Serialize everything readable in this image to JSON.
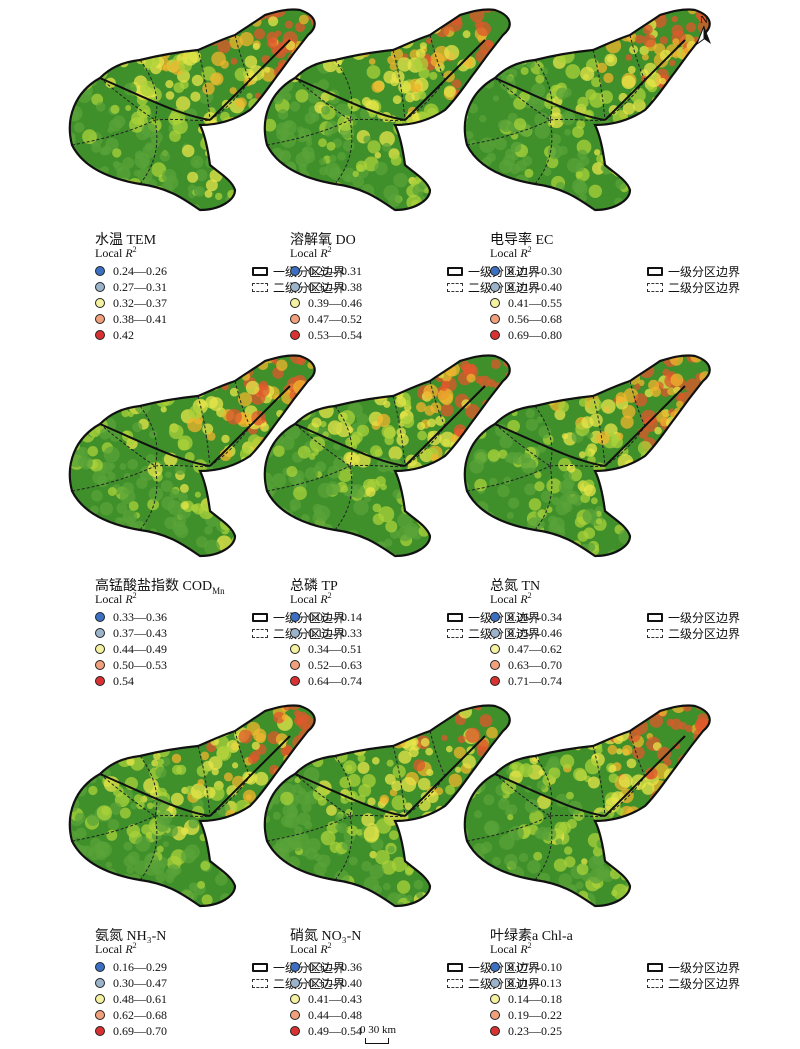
{
  "north_label": "N",
  "scale": {
    "label": "0  30 km"
  },
  "local_label_prefix": "Local ",
  "local_label_var": "R",
  "local_label_exp": "2",
  "boundary_labels": [
    "一级分区边界",
    "二级分区边界"
  ],
  "class_colors": [
    "#3a6fc1",
    "#9cb3cc",
    "#f4f2a0",
    "#f2a07b",
    "#d93131"
  ],
  "panels": [
    {
      "title": "水温 TEM",
      "title_sub": "",
      "classes": [
        "0.24—0.26",
        "0.27—0.31",
        "0.32—0.37",
        "0.38—0.41",
        "0.42"
      ]
    },
    {
      "title": "溶解氧 DO",
      "title_sub": "",
      "classes": [
        "0.25—0.31",
        "0.32—0.38",
        "0.39—0.46",
        "0.47—0.52",
        "0.53—0.54"
      ]
    },
    {
      "title": "电导率 EC",
      "title_sub": "",
      "classes": [
        "0.21—0.30",
        "0.31—0.40",
        "0.41—0.55",
        "0.56—0.68",
        "0.69—0.80"
      ]
    },
    {
      "title": "高锰酸盐指数 COD",
      "title_sub": "Mn",
      "classes": [
        "0.33—0.36",
        "0.37—0.43",
        "0.44—0.49",
        "0.50—0.53",
        "0.54"
      ]
    },
    {
      "title": "总磷 TP",
      "title_sub": "",
      "classes": [
        "0.05—0.14",
        "0.15—0.33",
        "0.34—0.51",
        "0.52—0.63",
        "0.64—0.74"
      ]
    },
    {
      "title": "总氮 TN",
      "title_sub": "",
      "classes": [
        "0.26—0.34",
        "0.35—0.46",
        "0.47—0.62",
        "0.63—0.70",
        "0.71—0.74"
      ]
    },
    {
      "title": "氨氮 NH₃-N",
      "title_sub": "",
      "classes": [
        "0.16—0.29",
        "0.30—0.47",
        "0.48—0.61",
        "0.62—0.68",
        "0.69—0.70"
      ]
    },
    {
      "title": "硝氮 NO₃-N",
      "title_sub": "",
      "classes": [
        "0.32—0.36",
        "0.37—0.40",
        "0.41—0.43",
        "0.44—0.48",
        "0.49—0.54"
      ]
    },
    {
      "title": "叶绿素a Chl-a",
      "title_sub": "",
      "classes": [
        "0.07—0.10",
        "0.11—0.13",
        "0.14—0.18",
        "0.19—0.22",
        "0.23—0.25"
      ]
    }
  ]
}
